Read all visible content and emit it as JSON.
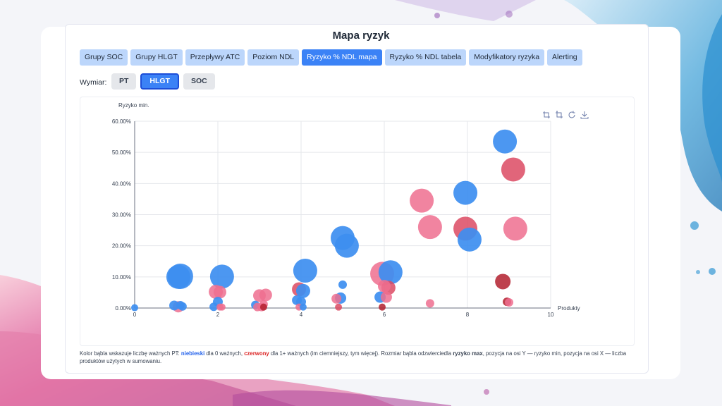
{
  "page_title": "Mapa ryzyk",
  "tabs": [
    {
      "label": "Grupy SOC",
      "active": false
    },
    {
      "label": "Grupy HLGT",
      "active": false
    },
    {
      "label": "Przepływy ATC",
      "active": false
    },
    {
      "label": "Poziom NDL",
      "active": false
    },
    {
      "label": "Ryzyko % NDL mapa",
      "active": true
    },
    {
      "label": "Ryzyko % NDL tabela",
      "active": false
    },
    {
      "label": "Modyfikatory ryzyka",
      "active": false
    },
    {
      "label": "Alerting",
      "active": false
    }
  ],
  "dimension": {
    "label": "Wymiar:",
    "options": [
      {
        "label": "PT",
        "active": false
      },
      {
        "label": "HLGT",
        "active": true
      },
      {
        "label": "SOC",
        "active": false
      }
    ]
  },
  "toolbox": [
    "zoom-icon",
    "zoom-reset-icon",
    "restore-icon",
    "download-icon"
  ],
  "caption": {
    "p1": "Kolor bąbla wskazuje liczbę ważnych PT: ",
    "blue": "niebieski",
    "p2": " dla 0 ważnych, ",
    "red": "czerwony",
    "p3": " dla 1+ ważnych (im ciemniejszy, tym więcej). Rozmiar bąbla odzwierciedla ",
    "b1": "ryzyko max",
    "p4": ", pozycja na osi Y — ryzyko min, pozycja na osi X — liczba produktów użytych w sumowaniu."
  },
  "colors": {
    "blue": "#3d8ef0",
    "red_light": "#ee6f8f",
    "red_mid": "#dc4a63",
    "red_dark": "#b3202e",
    "axis": "#6b7280",
    "grid": "#e5e7eb"
  },
  "chart_data": {
    "type": "scatter",
    "ylabel": "Ryzyko min.",
    "xlabel": "Produkty",
    "xlim": [
      0,
      10
    ],
    "ylim": [
      0,
      60
    ],
    "x_ticks": [
      "0",
      "2",
      "4",
      "6",
      "8",
      "10"
    ],
    "y_ticks": [
      "0.00%",
      "10.00%",
      "20.00%",
      "30.00%",
      "40.00%",
      "50.00%",
      "60.00%"
    ],
    "grid": true,
    "points": [
      {
        "x": 0.0,
        "y": 0.1,
        "size": 5,
        "color": "blue"
      },
      {
        "x": 0.95,
        "y": 0.8,
        "size": 7,
        "color": "blue"
      },
      {
        "x": 1.05,
        "y": 0.4,
        "size": 8,
        "color": "red_light"
      },
      {
        "x": 1.1,
        "y": 0.9,
        "size": 6,
        "color": "blue"
      },
      {
        "x": 1.15,
        "y": 0.5,
        "size": 6,
        "color": "blue"
      },
      {
        "x": 1.05,
        "y": 10.0,
        "size": 17,
        "color": "blue"
      },
      {
        "x": 1.1,
        "y": 10.2,
        "size": 18,
        "color": "blue"
      },
      {
        "x": 1.9,
        "y": 0.4,
        "size": 6,
        "color": "blue"
      },
      {
        "x": 1.95,
        "y": 5.2,
        "size": 10,
        "color": "red_light"
      },
      {
        "x": 2.0,
        "y": 2.0,
        "size": 7,
        "color": "blue"
      },
      {
        "x": 2.05,
        "y": 5.1,
        "size": 9,
        "color": "red_light"
      },
      {
        "x": 2.05,
        "y": 0.3,
        "size": 5,
        "color": "red_light"
      },
      {
        "x": 2.1,
        "y": 0.3,
        "size": 5,
        "color": "red_light"
      },
      {
        "x": 2.1,
        "y": 10.1,
        "size": 17,
        "color": "blue"
      },
      {
        "x": 2.9,
        "y": 1.0,
        "size": 6,
        "color": "blue"
      },
      {
        "x": 2.95,
        "y": 0.3,
        "size": 6,
        "color": "red_light"
      },
      {
        "x": 3.0,
        "y": 4.0,
        "size": 9,
        "color": "red_light"
      },
      {
        "x": 3.05,
        "y": 0.3,
        "size": 6,
        "color": "red_light"
      },
      {
        "x": 3.1,
        "y": 1.2,
        "size": 6,
        "color": "red_light"
      },
      {
        "x": 3.1,
        "y": 0.3,
        "size": 5,
        "color": "red_dark"
      },
      {
        "x": 3.15,
        "y": 4.2,
        "size": 9,
        "color": "red_light"
      },
      {
        "x": 3.9,
        "y": 2.5,
        "size": 7,
        "color": "blue"
      },
      {
        "x": 3.95,
        "y": 0.3,
        "size": 5,
        "color": "red_light"
      },
      {
        "x": 3.95,
        "y": 6.0,
        "size": 10,
        "color": "red_mid"
      },
      {
        "x": 4.0,
        "y": 2.0,
        "size": 7,
        "color": "blue"
      },
      {
        "x": 4.05,
        "y": 0.3,
        "size": 5,
        "color": "blue"
      },
      {
        "x": 4.05,
        "y": 5.5,
        "size": 10,
        "color": "blue"
      },
      {
        "x": 4.1,
        "y": 12.0,
        "size": 17,
        "color": "blue"
      },
      {
        "x": 4.85,
        "y": 3.0,
        "size": 7,
        "color": "red_light"
      },
      {
        "x": 4.9,
        "y": 0.3,
        "size": 5,
        "color": "red_mid"
      },
      {
        "x": 4.95,
        "y": 3.2,
        "size": 8,
        "color": "blue"
      },
      {
        "x": 5.0,
        "y": 7.5,
        "size": 6,
        "color": "blue"
      },
      {
        "x": 5.0,
        "y": 22.5,
        "size": 17,
        "color": "blue"
      },
      {
        "x": 5.1,
        "y": 20.0,
        "size": 17,
        "color": "blue"
      },
      {
        "x": 5.9,
        "y": 3.5,
        "size": 8,
        "color": "blue"
      },
      {
        "x": 5.95,
        "y": 0.3,
        "size": 5,
        "color": "red_dark"
      },
      {
        "x": 5.95,
        "y": 11.0,
        "size": 17,
        "color": "red_light"
      },
      {
        "x": 6.0,
        "y": 7.0,
        "size": 9,
        "color": "red_light"
      },
      {
        "x": 6.05,
        "y": 3.5,
        "size": 8,
        "color": "red_light"
      },
      {
        "x": 6.1,
        "y": 6.5,
        "size": 10,
        "color": "red_mid"
      },
      {
        "x": 6.15,
        "y": 11.5,
        "size": 17,
        "color": "blue"
      },
      {
        "x": 6.9,
        "y": 34.5,
        "size": 17,
        "color": "red_light"
      },
      {
        "x": 7.1,
        "y": 1.5,
        "size": 6,
        "color": "red_light"
      },
      {
        "x": 7.1,
        "y": 26.0,
        "size": 17,
        "color": "red_light"
      },
      {
        "x": 7.95,
        "y": 25.5,
        "size": 17,
        "color": "red_mid"
      },
      {
        "x": 7.95,
        "y": 37.0,
        "size": 17,
        "color": "blue"
      },
      {
        "x": 8.05,
        "y": 22.0,
        "size": 17,
        "color": "blue"
      },
      {
        "x": 8.85,
        "y": 8.5,
        "size": 11,
        "color": "red_dark"
      },
      {
        "x": 8.9,
        "y": 53.5,
        "size": 17,
        "color": "blue"
      },
      {
        "x": 8.95,
        "y": 2.0,
        "size": 6,
        "color": "red_dark"
      },
      {
        "x": 9.0,
        "y": 1.8,
        "size": 6,
        "color": "red_light"
      },
      {
        "x": 9.1,
        "y": 44.5,
        "size": 17,
        "color": "red_mid"
      },
      {
        "x": 9.15,
        "y": 25.5,
        "size": 17,
        "color": "red_light"
      }
    ]
  }
}
